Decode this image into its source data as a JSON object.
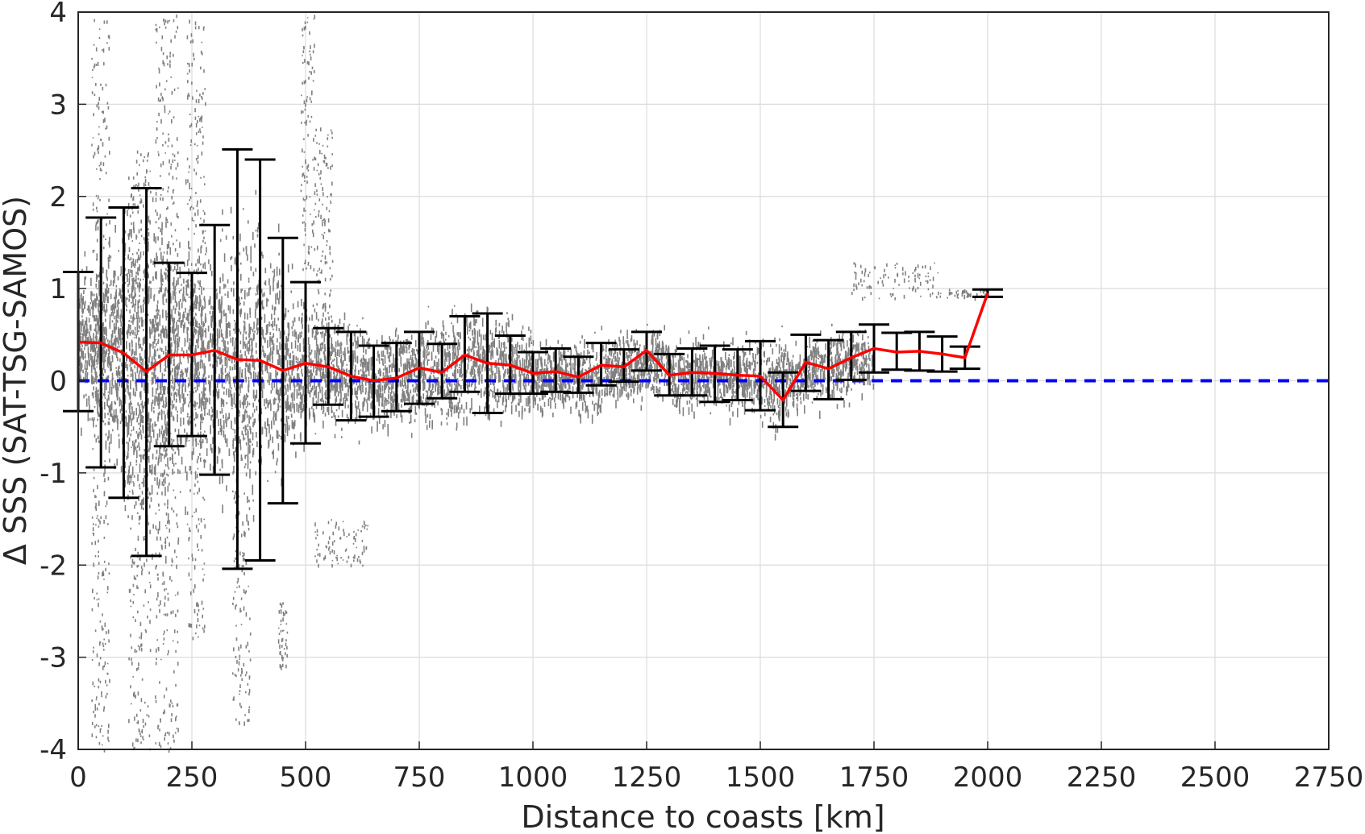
{
  "chart_data": {
    "type": "scatter",
    "title": "",
    "xlabel": "Distance to coasts [km]",
    "ylabel": "Δ SSS (SAT-TSG-SAMOS)",
    "xlim": [
      0,
      2750
    ],
    "ylim": [
      -4,
      4
    ],
    "x_ticks": [
      "0",
      "250",
      "500",
      "750",
      "1000",
      "1250",
      "1500",
      "1750",
      "2000",
      "2250",
      "2500",
      "2750"
    ],
    "y_ticks": [
      "-4",
      "-3",
      "-2",
      "-1",
      "0",
      "1",
      "2",
      "3",
      "4"
    ],
    "grid": true,
    "colors": {
      "scatter": "#808080",
      "mean_line": "#ff0000",
      "error_bars": "#000000",
      "zero_line": "#0000ff"
    },
    "mean_series": {
      "x": [
        0,
        50,
        100,
        150,
        200,
        250,
        300,
        350,
        400,
        450,
        500,
        550,
        600,
        650,
        700,
        750,
        800,
        850,
        900,
        950,
        1000,
        1050,
        1100,
        1150,
        1200,
        1250,
        1300,
        1350,
        1400,
        1450,
        1500,
        1550,
        1600,
        1650,
        1700,
        1750,
        1800,
        1850,
        1900,
        1950,
        2000
      ],
      "y": [
        0.42,
        0.41,
        0.3,
        0.1,
        0.28,
        0.28,
        0.33,
        0.23,
        0.22,
        0.11,
        0.19,
        0.15,
        0.05,
        0.0,
        0.03,
        0.14,
        0.09,
        0.28,
        0.19,
        0.17,
        0.08,
        0.1,
        0.04,
        0.17,
        0.15,
        0.33,
        0.06,
        0.09,
        0.08,
        0.06,
        0.05,
        -0.21,
        0.2,
        0.13,
        0.25,
        0.35,
        0.31,
        0.32,
        0.29,
        0.25,
        0.95
      ]
    },
    "error_bars": {
      "x": [
        0,
        50,
        100,
        150,
        200,
        250,
        300,
        350,
        400,
        450,
        500,
        550,
        600,
        650,
        700,
        750,
        800,
        850,
        900,
        950,
        1000,
        1050,
        1100,
        1150,
        1200,
        1250,
        1300,
        1350,
        1400,
        1450,
        1500,
        1550,
        1600,
        1650,
        1700,
        1750,
        1800,
        1850,
        1900,
        1950,
        2000
      ],
      "lower": [
        -0.33,
        -0.94,
        -1.27,
        -1.9,
        -0.71,
        -0.6,
        -1.02,
        -2.04,
        -1.95,
        -1.33,
        -0.68,
        -0.26,
        -0.43,
        -0.39,
        -0.33,
        -0.25,
        -0.19,
        -0.12,
        -0.35,
        -0.14,
        -0.14,
        -0.12,
        -0.13,
        -0.05,
        -0.01,
        0.11,
        -0.16,
        -0.16,
        -0.23,
        -0.21,
        -0.32,
        -0.5,
        -0.11,
        -0.2,
        0.01,
        0.09,
        0.12,
        0.11,
        0.1,
        0.13,
        0.91
      ],
      "upper": [
        1.18,
        1.77,
        1.88,
        2.09,
        1.28,
        1.17,
        1.69,
        2.51,
        2.4,
        1.55,
        1.07,
        0.57,
        0.53,
        0.38,
        0.41,
        0.53,
        0.4,
        0.7,
        0.73,
        0.49,
        0.31,
        0.35,
        0.26,
        0.41,
        0.34,
        0.53,
        0.29,
        0.35,
        0.38,
        0.34,
        0.43,
        0.09,
        0.5,
        0.44,
        0.53,
        0.61,
        0.52,
        0.53,
        0.48,
        0.37,
        0.99
      ]
    },
    "zero_line": {
      "y": 0,
      "style": "dashed"
    },
    "scatter_bins": [
      {
        "x0": 0,
        "x1": 50,
        "center": 0.45,
        "spread": 0.55,
        "density": 260
      },
      {
        "x0": 50,
        "x1": 100,
        "center": 0.35,
        "spread": 0.8,
        "density": 280
      },
      {
        "x0": 100,
        "x1": 150,
        "center": 0.25,
        "spread": 1.1,
        "density": 300
      },
      {
        "x0": 150,
        "x1": 200,
        "center": 0.15,
        "spread": 1.2,
        "density": 300
      },
      {
        "x0": 200,
        "x1": 250,
        "center": 0.28,
        "spread": 0.9,
        "density": 260
      },
      {
        "x0": 250,
        "x1": 300,
        "center": 0.28,
        "spread": 0.8,
        "density": 240
      },
      {
        "x0": 300,
        "x1": 350,
        "center": 0.3,
        "spread": 0.9,
        "density": 240
      },
      {
        "x0": 350,
        "x1": 400,
        "center": 0.23,
        "spread": 1.0,
        "density": 240
      },
      {
        "x0": 400,
        "x1": 450,
        "center": 0.2,
        "spread": 0.8,
        "density": 220
      },
      {
        "x0": 450,
        "x1": 500,
        "center": 0.15,
        "spread": 0.6,
        "density": 200
      },
      {
        "x0": 500,
        "x1": 550,
        "center": 0.18,
        "spread": 0.45,
        "density": 180
      },
      {
        "x0": 550,
        "x1": 600,
        "center": 0.12,
        "spread": 0.4,
        "density": 180
      },
      {
        "x0": 600,
        "x1": 650,
        "center": 0.05,
        "spread": 0.35,
        "density": 170
      },
      {
        "x0": 650,
        "x1": 700,
        "center": 0.02,
        "spread": 0.35,
        "density": 160
      },
      {
        "x0": 700,
        "x1": 750,
        "center": 0.05,
        "spread": 0.35,
        "density": 160
      },
      {
        "x0": 750,
        "x1": 800,
        "center": 0.12,
        "spread": 0.35,
        "density": 160
      },
      {
        "x0": 800,
        "x1": 850,
        "center": 0.12,
        "spread": 0.4,
        "density": 160
      },
      {
        "x0": 850,
        "x1": 900,
        "center": 0.25,
        "spread": 0.4,
        "density": 160
      },
      {
        "x0": 900,
        "x1": 950,
        "center": 0.18,
        "spread": 0.35,
        "density": 150
      },
      {
        "x0": 950,
        "x1": 1000,
        "center": 0.15,
        "spread": 0.3,
        "density": 150
      },
      {
        "x0": 1000,
        "x1": 1050,
        "center": 0.08,
        "spread": 0.25,
        "density": 150
      },
      {
        "x0": 1050,
        "x1": 1100,
        "center": 0.1,
        "spread": 0.25,
        "density": 150
      },
      {
        "x0": 1100,
        "x1": 1150,
        "center": 0.05,
        "spread": 0.25,
        "density": 140
      },
      {
        "x0": 1150,
        "x1": 1200,
        "center": 0.17,
        "spread": 0.25,
        "density": 140
      },
      {
        "x0": 1200,
        "x1": 1250,
        "center": 0.15,
        "spread": 0.25,
        "density": 140
      },
      {
        "x0": 1250,
        "x1": 1300,
        "center": 0.25,
        "spread": 0.25,
        "density": 140
      },
      {
        "x0": 1300,
        "x1": 1350,
        "center": 0.07,
        "spread": 0.25,
        "density": 140
      },
      {
        "x0": 1350,
        "x1": 1400,
        "center": 0.09,
        "spread": 0.25,
        "density": 140
      },
      {
        "x0": 1400,
        "x1": 1450,
        "center": 0.08,
        "spread": 0.25,
        "density": 140
      },
      {
        "x0": 1450,
        "x1": 1500,
        "center": 0.06,
        "spread": 0.25,
        "density": 140
      },
      {
        "x0": 1500,
        "x1": 1550,
        "center": 0.0,
        "spread": 0.3,
        "density": 140
      },
      {
        "x0": 1550,
        "x1": 1600,
        "center": 0.05,
        "spread": 0.25,
        "density": 130
      },
      {
        "x0": 1600,
        "x1": 1650,
        "center": 0.15,
        "spread": 0.25,
        "density": 130
      },
      {
        "x0": 1650,
        "x1": 1700,
        "center": 0.18,
        "spread": 0.25,
        "density": 130
      },
      {
        "x0": 1700,
        "x1": 1750,
        "center": 0.25,
        "spread": 0.2,
        "density": 110
      }
    ],
    "scatter_features": [
      {
        "x0": 30,
        "x1": 70,
        "y0": -4,
        "y1": 4
      },
      {
        "x0": 110,
        "x1": 160,
        "y0": -4,
        "y1": 2.5
      },
      {
        "x0": 170,
        "x1": 220,
        "y0": -4,
        "y1": 4
      },
      {
        "x0": 240,
        "x1": 280,
        "y0": -2.8,
        "y1": 4
      },
      {
        "x0": 340,
        "x1": 380,
        "y0": -3.7,
        "y1": 0
      },
      {
        "x0": 440,
        "x1": 460,
        "y0": -3.1,
        "y1": -2.4
      },
      {
        "x0": 490,
        "x1": 520,
        "y0": 1.2,
        "y1": 4
      },
      {
        "x0": 520,
        "x1": 560,
        "y0": 0.5,
        "y1": 2.8
      },
      {
        "x0": 520,
        "x1": 640,
        "y0": -2.0,
        "y1": -1.5
      },
      {
        "x0": 1700,
        "x1": 1900,
        "y0": 0.9,
        "y1": 1.3
      },
      {
        "x0": 1900,
        "x1": 2000,
        "y0": 0.9,
        "y1": 1.0
      }
    ]
  }
}
